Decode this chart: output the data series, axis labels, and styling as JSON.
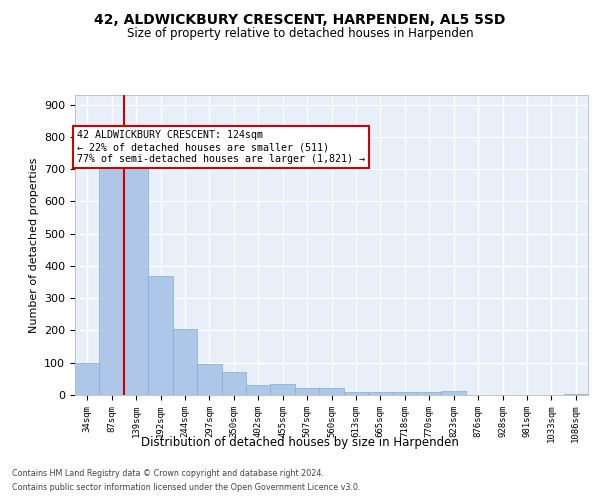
{
  "title1": "42, ALDWICKBURY CRESCENT, HARPENDEN, AL5 5SD",
  "title2": "Size of property relative to detached houses in Harpenden",
  "xlabel": "Distribution of detached houses by size in Harpenden",
  "ylabel": "Number of detached properties",
  "categories": [
    "34sqm",
    "87sqm",
    "139sqm",
    "192sqm",
    "244sqm",
    "297sqm",
    "350sqm",
    "402sqm",
    "455sqm",
    "507sqm",
    "560sqm",
    "613sqm",
    "665sqm",
    "718sqm",
    "770sqm",
    "823sqm",
    "876sqm",
    "928sqm",
    "981sqm",
    "1033sqm",
    "1086sqm"
  ],
  "values": [
    100,
    710,
    710,
    370,
    205,
    95,
    70,
    32,
    35,
    22,
    22,
    10,
    10,
    10,
    10,
    13,
    0,
    0,
    0,
    0,
    3
  ],
  "bar_color": "#aec6e8",
  "bar_edge_color": "#7aafd4",
  "vline_position": 1.5,
  "vline_color": "#cc0000",
  "annotation_text": "42 ALDWICKBURY CRESCENT: 124sqm\n← 22% of detached houses are smaller (511)\n77% of semi-detached houses are larger (1,821) →",
  "annotation_box_facecolor": "#ffffff",
  "annotation_box_edgecolor": "#cc0000",
  "ylim": [
    0,
    930
  ],
  "yticks": [
    0,
    100,
    200,
    300,
    400,
    500,
    600,
    700,
    800,
    900
  ],
  "plot_bg": "#e8eff8",
  "grid_color": "#ffffff",
  "footer1": "Contains HM Land Registry data © Crown copyright and database right 2024.",
  "footer2": "Contains public sector information licensed under the Open Government Licence v3.0."
}
